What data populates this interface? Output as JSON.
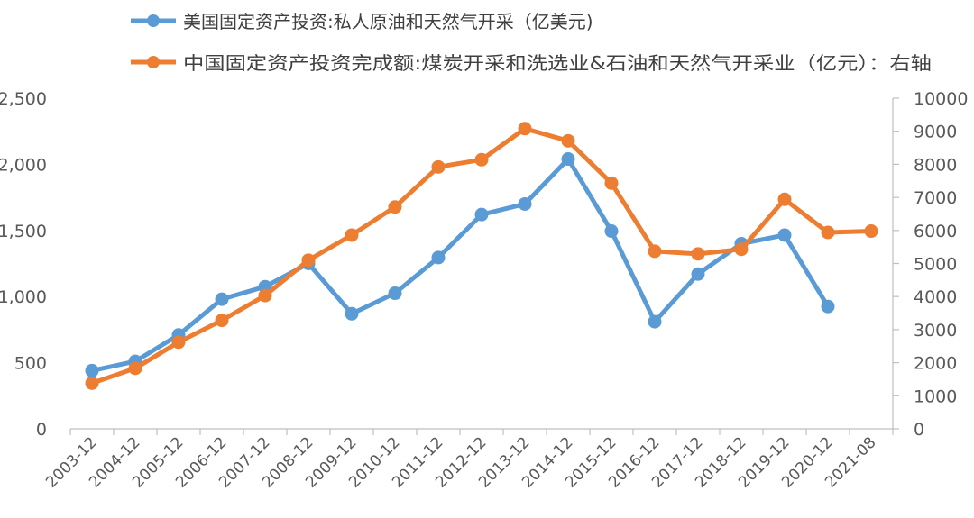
{
  "chart_data": {
    "type": "line",
    "categories": [
      "2003-12",
      "2004-12",
      "2005-12",
      "2006-12",
      "2007-12",
      "2008-12",
      "2009-12",
      "2010-12",
      "2011-12",
      "2012-12",
      "2013-12",
      "2014-12",
      "2015-12",
      "2016-12",
      "2017-12",
      "2018-12",
      "2019-12",
      "2020-12",
      "2021-08"
    ],
    "series": [
      {
        "name": "美国固定资产投资:私人原油和天然气开采（亿美元)",
        "axis": "left",
        "color": "#5B9BD5",
        "values": [
          440,
          510,
          710,
          980,
          1075,
          1250,
          870,
          1025,
          1295,
          1620,
          1700,
          2040,
          1495,
          810,
          1170,
          1400,
          1465,
          925,
          null
        ]
      },
      {
        "name": "中国固定资产投资完成额:煤炭开采和洗选业&石油和天然气开采业（亿元）：右轴",
        "axis": "right",
        "color": "#ED7D31",
        "values": [
          1380,
          1830,
          2620,
          3280,
          4030,
          5100,
          5860,
          6710,
          7920,
          8140,
          9080,
          8710,
          7430,
          5370,
          5290,
          5430,
          6940,
          5940,
          5980
        ]
      }
    ],
    "left_axis": {
      "min": 0,
      "max": 2500,
      "ticks": [
        "0",
        "500",
        "1,000",
        "1,500",
        "2,000",
        "2,500"
      ],
      "tick_values": [
        0,
        500,
        1000,
        1500,
        2000,
        2500
      ]
    },
    "right_axis": {
      "min": 0,
      "max": 10000,
      "ticks": [
        "0",
        "1000",
        "2000",
        "3000",
        "4000",
        "5000",
        "6000",
        "7000",
        "8000",
        "9000",
        "10000"
      ],
      "tick_values": [
        0,
        1000,
        2000,
        3000,
        4000,
        5000,
        6000,
        7000,
        8000,
        9000,
        10000
      ]
    },
    "grid": false,
    "legend_position": "top"
  }
}
